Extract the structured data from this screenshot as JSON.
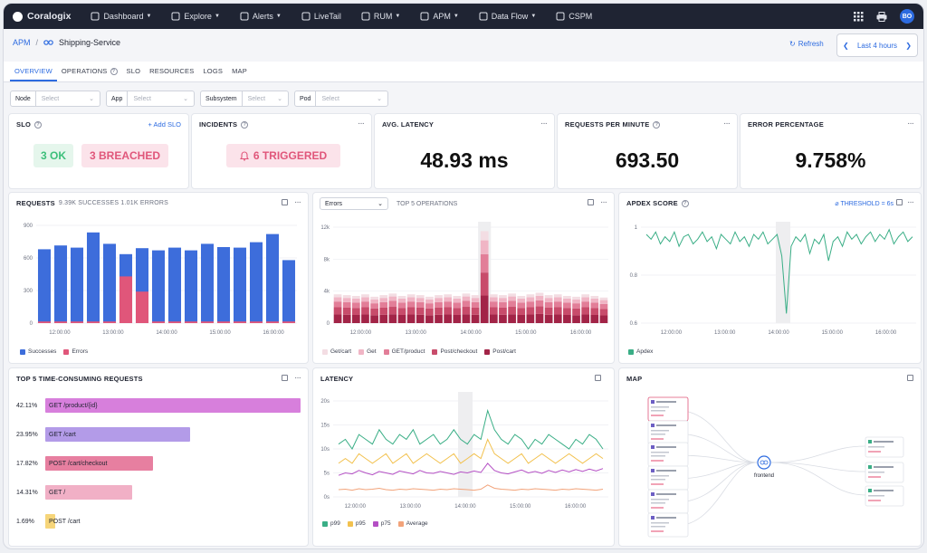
{
  "nav": {
    "brand": "Coralogix",
    "items": [
      {
        "label": "Dashboard",
        "icon": "dashboard-icon",
        "dropdown": true
      },
      {
        "label": "Explore",
        "icon": "explore-icon",
        "dropdown": true
      },
      {
        "label": "Alerts",
        "icon": "bell-icon",
        "dropdown": true
      },
      {
        "label": "LiveTail",
        "icon": "livetail-icon",
        "dropdown": false
      },
      {
        "label": "RUM",
        "icon": "rum-icon",
        "dropdown": true
      },
      {
        "label": "APM",
        "icon": "apm-icon",
        "dropdown": true
      },
      {
        "label": "Data Flow",
        "icon": "dataflow-icon",
        "dropdown": true
      },
      {
        "label": "CSPM",
        "icon": "shield-icon",
        "dropdown": false
      }
    ],
    "avatar": "BO"
  },
  "breadcrumb": {
    "root": "APM",
    "sep": "/",
    "service": "Shipping-Service"
  },
  "header": {
    "refresh": "Refresh",
    "time_range": "Last 4 hours"
  },
  "tabs": [
    "OVERVIEW",
    "OPERATIONS",
    "SLO",
    "RESOURCES",
    "LOGS",
    "MAP"
  ],
  "active_tab": "OVERVIEW",
  "filters": [
    {
      "label": "Node",
      "placeholder": "Select"
    },
    {
      "label": "App",
      "placeholder": "Select"
    },
    {
      "label": "Subsystem",
      "placeholder": "Select"
    },
    {
      "label": "Pod",
      "placeholder": "Select"
    }
  ],
  "slo": {
    "title": "SLO",
    "add": "+ Add SLO",
    "ok": "3 OK",
    "breached": "3 BREACHED"
  },
  "incidents": {
    "title": "INCIDENTS",
    "triggered": "6 TRIGGERED"
  },
  "latency_card": {
    "title": "AVG. LATENCY",
    "value": "48.93 ms"
  },
  "rpm_card": {
    "title": "REQUESTS PER MINUTE",
    "value": "693.50"
  },
  "error_card": {
    "title": "ERROR PERCENTAGE",
    "value": "9.758%"
  },
  "requests": {
    "title": "REQUESTS",
    "subtitle": "9.39K SUCCESSES 1.01K ERRORS",
    "legend": [
      "Successes",
      "Errors"
    ],
    "colors": {
      "success": "#3d6ddb",
      "error": "#e0567a"
    }
  },
  "operations": {
    "select": "Errors",
    "title": "TOP 5 OPERATIONS",
    "legend": [
      "Get/cart",
      "Get",
      "GET/product",
      "Post/checkout",
      "Post/cart"
    ]
  },
  "apdex": {
    "title": "APDEX SCORE",
    "threshold": "THRESHOLD = 6s",
    "legend": [
      "Apdex"
    ]
  },
  "top_requests": {
    "title": "TOP 5 TIME-CONSUMING REQUESTS",
    "rows": [
      {
        "pct": "42.11%",
        "label": "GET /product/{id}",
        "value": 42.11,
        "color": "#d77fdc"
      },
      {
        "pct": "23.95%",
        "label": "GET /cart",
        "value": 23.95,
        "color": "#b39be8"
      },
      {
        "pct": "17.82%",
        "label": "POST /cart/checkout",
        "value": 17.82,
        "color": "#e77fa0"
      },
      {
        "pct": "14.31%",
        "label": "GET /",
        "value": 14.31,
        "color": "#f1b0c6"
      },
      {
        "pct": "1.69%",
        "label": "POST /cart",
        "value": 1.69,
        "color": "#f6d57a"
      }
    ]
  },
  "latency_chart": {
    "title": "LATENCY",
    "legend": [
      "p99",
      "p95",
      "p75",
      "Average"
    ]
  },
  "map": {
    "title": "MAP",
    "center": "frontend"
  },
  "chart_data": [
    {
      "type": "bar",
      "name": "requests",
      "x_ticks": [
        "12:00:00",
        "13:00:00",
        "14:00:00",
        "15:00:00",
        "16:00:00"
      ],
      "ylim": [
        0,
        900
      ],
      "y_ticks": [
        0,
        300,
        600,
        900
      ],
      "series": [
        {
          "name": "Successes",
          "values": [
            680,
            715,
            695,
            835,
            730,
            635,
            690,
            670,
            695,
            670,
            730,
            700,
            695,
            745,
            820,
            580
          ]
        },
        {
          "name": "Errors",
          "values": [
            15,
            15,
            15,
            15,
            15,
            430,
            290,
            15,
            15,
            15,
            15,
            15,
            15,
            15,
            15,
            15
          ]
        }
      ]
    },
    {
      "type": "bar",
      "name": "top-5-operations",
      "x_ticks": [
        "12:00:00",
        "13:00:00",
        "14:00:00",
        "15:00:00",
        "16:00:00"
      ],
      "ylim": [
        0,
        12000
      ],
      "y_ticks": [
        "0",
        "4k",
        "8k",
        "12k"
      ],
      "totals": [
        3600,
        3500,
        3400,
        3600,
        3300,
        3500,
        3700,
        3400,
        3600,
        3500,
        3300,
        3500,
        3600,
        3400,
        3700,
        3500,
        11500,
        3600,
        3500,
        3700,
        3400,
        3600,
        3800,
        3500,
        3600,
        3400,
        3300,
        3600,
        3400,
        3200
      ],
      "series_names": [
        "Get/cart",
        "Get",
        "GET/product",
        "Post/checkout",
        "Post/cart"
      ]
    },
    {
      "type": "line",
      "name": "apdex-score",
      "x_ticks": [
        "12:00:00",
        "13:00:00",
        "14:00:00",
        "15:00:00",
        "16:00:00"
      ],
      "ylim": [
        0.6,
        1
      ],
      "y_ticks": [
        "0.6",
        "0.8",
        "1"
      ],
      "series": [
        {
          "name": "Apdex",
          "values": [
            0.97,
            0.95,
            0.98,
            0.93,
            0.96,
            0.94,
            0.98,
            0.92,
            0.96,
            0.97,
            0.93,
            0.95,
            0.98,
            0.94,
            0.96,
            0.91,
            0.97,
            0.95,
            0.93,
            0.98,
            0.94,
            0.96,
            0.92,
            0.97,
            0.95,
            0.98,
            0.93,
            0.95,
            0.97,
            0.88,
            0.64,
            0.92,
            0.96,
            0.94,
            0.97,
            0.89,
            0.95,
            0.93,
            0.97,
            0.86,
            0.94,
            0.96,
            0.92,
            0.98,
            0.95,
            0.97,
            0.93,
            0.96,
            0.98,
            0.94,
            0.97,
            0.95,
            0.99,
            0.93,
            0.96,
            0.98,
            0.94,
            0.96
          ]
        }
      ]
    },
    {
      "type": "line",
      "name": "latency",
      "x_ticks": [
        "12:00:00",
        "13:00:00",
        "14:00:00",
        "15:00:00",
        "16:00:00"
      ],
      "ylim": [
        0,
        20
      ],
      "y_ticks": [
        "0s",
        "5s",
        "10s",
        "15s",
        "20s"
      ],
      "series": [
        {
          "name": "p99",
          "values": [
            11,
            12,
            10,
            13,
            12,
            11,
            14,
            12,
            11,
            13,
            12,
            14,
            11,
            12,
            13,
            11,
            12,
            14,
            12,
            11,
            13,
            12,
            18,
            14,
            12,
            11,
            13,
            12,
            10,
            12,
            11,
            13,
            12,
            11,
            10,
            12,
            11,
            13,
            12,
            10
          ]
        },
        {
          "name": "p95",
          "values": [
            7,
            8,
            7,
            9,
            8,
            7,
            8,
            9,
            7,
            8,
            9,
            7,
            8,
            9,
            8,
            7,
            8,
            9,
            7,
            8,
            9,
            8,
            12,
            9,
            8,
            7,
            8,
            9,
            7,
            8,
            9,
            8,
            7,
            8,
            9,
            8,
            7,
            8,
            9,
            8
          ]
        },
        {
          "name": "p75",
          "values": [
            4.5,
            5,
            4.8,
            5.5,
            5,
            4.6,
            5.3,
            5,
            4.7,
            5.4,
            5.1,
            4.8,
            5.5,
            5,
            4.9,
            5.3,
            5,
            4.7,
            5.2,
            5,
            5.4,
            5.1,
            7,
            5.5,
            5,
            4.8,
            5.2,
            5.6,
            5,
            5.3,
            4.9,
            5.5,
            5.1,
            5.6,
            5.2,
            5.7,
            5.3,
            5.8,
            5.4,
            5.9
          ]
        },
        {
          "name": "Average",
          "values": [
            1.5,
            1.6,
            1.4,
            1.7,
            1.5,
            1.6,
            1.8,
            1.5,
            1.4,
            1.6,
            1.5,
            1.7,
            1.6,
            1.5,
            1.4,
            1.6,
            1.5,
            1.7,
            1.6,
            1.5,
            1.4,
            1.6,
            2.5,
            1.8,
            1.6,
            1.5,
            1.4,
            1.6,
            1.5,
            1.7,
            1.6,
            1.5,
            1.4,
            1.6,
            1.5,
            1.7,
            1.6,
            1.5,
            1.4,
            1.6
          ]
        }
      ]
    }
  ]
}
